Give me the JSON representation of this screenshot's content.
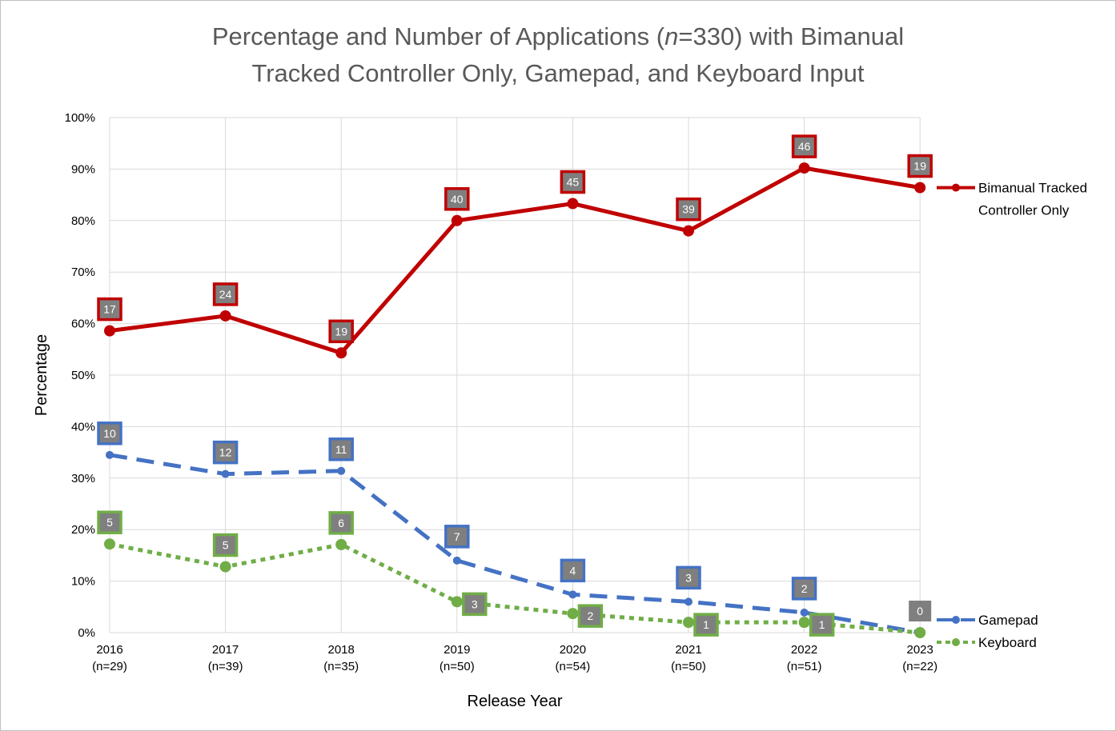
{
  "chart_data": {
    "type": "line",
    "title_line1_pre": "Percentage and Number of Applications (",
    "title_line1_italic": "n",
    "title_line1_post": "=330) with Bimanual",
    "title_line2": "Tracked Controller Only, Gamepad, and Keyboard Input",
    "xlabel": "Release Year",
    "ylabel": "Percentage",
    "ylim": [
      0,
      100
    ],
    "yticks": [
      "0%",
      "10%",
      "20%",
      "30%",
      "40%",
      "50%",
      "60%",
      "70%",
      "80%",
      "90%",
      "100%"
    ],
    "categories": [
      "2016",
      "2017",
      "2018",
      "2019",
      "2020",
      "2021",
      "2022",
      "2023"
    ],
    "category_sublabels": [
      "(n=29)",
      "(n=39)",
      "(n=35)",
      "(n=50)",
      "(n=54)",
      "(n=50)",
      "(n=51)",
      "(n=22)"
    ],
    "grid": true,
    "legend_placement": "right (at line ends)",
    "series": [
      {
        "name": "Bimanual Tracked Controller Only",
        "legend_lines": [
          "Bimanual Tracked",
          "Controller Only"
        ],
        "color": "#c00000",
        "style": "solid",
        "values": [
          58.6,
          61.5,
          54.3,
          80.0,
          83.3,
          78.0,
          90.2,
          86.4
        ],
        "labels": [
          "17",
          "24",
          "19",
          "40",
          "45",
          "39",
          "46",
          "19"
        ]
      },
      {
        "name": "Gamepad",
        "legend_lines": [
          "Gamepad"
        ],
        "color": "#4472c4",
        "style": "dashed",
        "values": [
          34.5,
          30.8,
          31.4,
          14.0,
          7.4,
          6.0,
          3.9,
          0
        ],
        "labels": [
          "10",
          "12",
          "11",
          "7",
          "4",
          "3",
          "2",
          "0"
        ]
      },
      {
        "name": "Keyboard",
        "legend_lines": [
          "Keyboard"
        ],
        "color": "#70ad47",
        "style": "dotted",
        "values": [
          17.2,
          12.8,
          17.1,
          6.0,
          3.7,
          2.0,
          2.0,
          0
        ],
        "labels": [
          "5",
          "5",
          "6",
          "3",
          "2",
          "1",
          "1",
          ""
        ]
      }
    ],
    "label_fill": "#7f7f7f"
  }
}
